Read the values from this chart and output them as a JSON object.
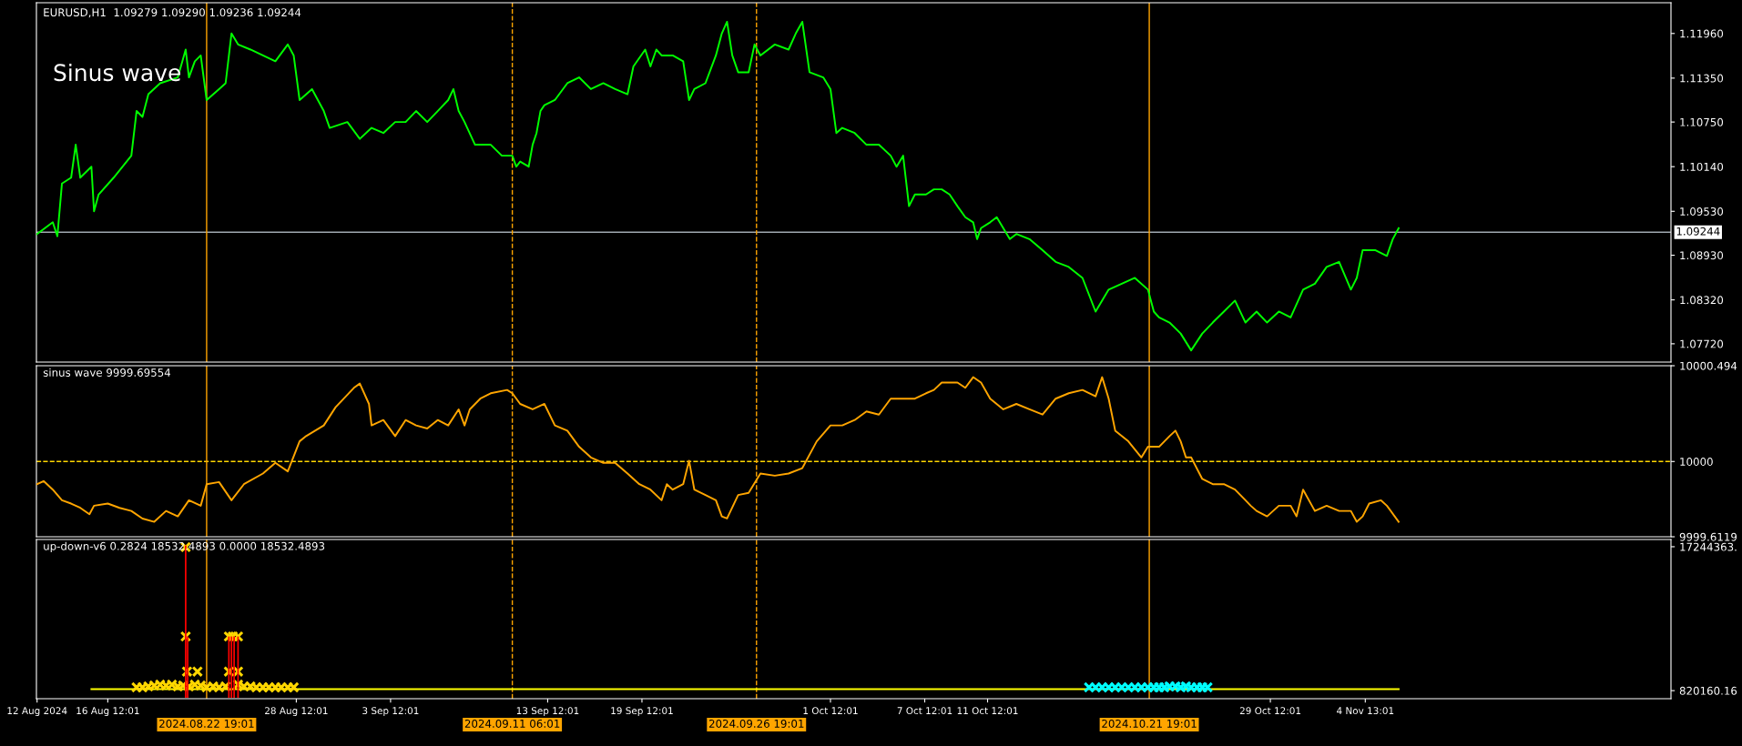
{
  "chart_data": [
    {
      "type": "line",
      "title": "EURUSD,H1  1.09279 1.09290 1.09236 1.09244",
      "annotations": [
        "Sinus wave"
      ],
      "tick_labels": "y",
      "xlim": [
        "2024-08-11T23:00",
        "2024-11-24T00:00"
      ],
      "ylim": [
        1.0747,
        1.1238
      ],
      "yticks": [
        {
          "value": 1.1196,
          "label": "1.11960"
        },
        {
          "value": 1.1135,
          "label": "1.11350"
        },
        {
          "value": 1.1075,
          "label": "1.10750"
        },
        {
          "value": 1.1014,
          "label": "1.10140"
        },
        {
          "value": 1.0953,
          "label": "1.09530"
        },
        {
          "value": 1.0893,
          "label": "1.08930"
        },
        {
          "value": 1.0832,
          "label": "1.08320"
        },
        {
          "value": 1.0772,
          "label": "1.07720"
        }
      ],
      "ref_lines": [
        {
          "axis": "y",
          "value": 1.09244,
          "label": "1.09244",
          "color": "#a0a8b0",
          "line_style": "solid"
        },
        {
          "axis": "x",
          "value": "2024-08-22T19:01",
          "label": null,
          "color": "#ffa500",
          "line_style": "solid"
        },
        {
          "axis": "x",
          "value": "2024-09-11T06:01",
          "label": null,
          "color": "#ffa500",
          "line_style": "dashed"
        },
        {
          "axis": "x",
          "value": "2024-09-26T19:01",
          "label": null,
          "color": "#ffa500",
          "line_style": "dashed"
        },
        {
          "axis": "x",
          "value": "2024-10-21T19:01",
          "label": null,
          "color": "#ffa500",
          "line_style": "solid"
        }
      ],
      "series": [
        {
          "color": "#00ff00",
          "x": [
            "2024-08-12T00:00",
            "2024-08-13T00:00",
            "2024-08-13T07:00",
            "2024-08-13T14:00",
            "2024-08-14T04:00",
            "2024-08-14T11:00",
            "2024-08-14T18:00",
            "2024-08-15T11:00",
            "2024-08-15T15:00",
            "2024-08-15T22:00",
            "2024-08-16T21:00",
            "2024-08-18T00:00",
            "2024-08-18T08:00",
            "2024-08-18T17:00",
            "2024-08-19T02:00",
            "2024-08-19T20:00",
            "2024-08-20T23:00",
            "2024-08-21T11:00",
            "2024-08-21T16:00",
            "2024-08-22T01:00",
            "2024-08-22T10:00",
            "2024-08-22T19:00",
            "2024-08-23T14:00",
            "2024-08-24T00:00",
            "2024-08-24T09:00",
            "2024-08-24T19:00",
            "2024-08-25T14:00",
            "2024-08-26T09:00",
            "2024-08-27T04:00",
            "2024-08-27T23:00",
            "2024-08-28T08:00",
            "2024-08-28T17:00",
            "2024-08-29T12:00",
            "2024-08-30T06:00",
            "2024-08-30T15:00",
            "2024-08-31T18:00",
            "2024-09-01T13:00",
            "2024-09-02T07:00",
            "2024-09-03T01:00",
            "2024-09-03T19:00",
            "2024-09-04T11:00",
            "2024-09-05T03:00",
            "2024-09-05T20:00",
            "2024-09-06T12:00",
            "2024-09-07T04:00",
            "2024-09-07T12:00",
            "2024-09-07T20:00",
            "2024-09-08T05:00",
            "2024-09-08T21:00",
            "2024-09-09T21:00",
            "2024-09-10T14:00",
            "2024-09-11T06:00",
            "2024-09-11T12:00",
            "2024-09-11T18:00",
            "2024-09-12T07:00",
            "2024-09-12T13:00",
            "2024-09-12T19:00",
            "2024-09-13T01:00",
            "2024-09-13T07:00",
            "2024-09-13T23:00",
            "2024-09-14T18:00",
            "2024-09-15T12:00",
            "2024-09-16T06:00",
            "2024-09-17T01:00",
            "2024-09-17T19:00",
            "2024-09-18T14:00",
            "2024-09-18T23:00",
            "2024-09-19T17:00",
            "2024-09-20T01:00",
            "2024-09-20T10:00",
            "2024-09-20T18:00",
            "2024-09-21T11:00",
            "2024-09-22T03:00",
            "2024-09-22T12:00",
            "2024-09-22T20:00",
            "2024-09-23T13:00",
            "2024-09-24T05:00",
            "2024-09-24T14:00",
            "2024-09-24T22:00",
            "2024-09-25T06:00",
            "2024-09-25T15:00",
            "2024-09-26T07:00",
            "2024-09-26T16:00",
            "2024-09-27T01:00",
            "2024-09-27T23:00",
            "2024-09-28T20:00",
            "2024-09-29T07:00",
            "2024-09-29T17:00",
            "2024-09-30T04:00",
            "2024-10-01T01:00",
            "2024-10-01T12:00",
            "2024-10-01T21:00",
            "2024-10-02T06:00",
            "2024-10-03T01:00",
            "2024-10-03T19:00",
            "2024-10-04T14:00",
            "2024-10-05T08:00",
            "2024-10-05T17:00",
            "2024-10-06T03:00",
            "2024-10-06T12:00",
            "2024-10-06T21:00",
            "2024-10-07T14:00",
            "2024-10-08T02:00",
            "2024-10-08T14:00",
            "2024-10-09T02:00",
            "2024-10-09T14:00",
            "2024-10-10T02:00",
            "2024-10-10T14:00",
            "2024-10-10T20:00",
            "2024-10-11T02:00",
            "2024-10-11T16:00",
            "2024-10-12T02:00",
            "2024-10-12T12:00",
            "2024-10-12T22:00",
            "2024-10-13T08:00",
            "2024-10-14T04:00",
            "2024-10-15T00:00",
            "2024-10-15T20:00",
            "2024-10-16T16:00",
            "2024-10-17T13:00",
            "2024-10-18T09:00",
            "2024-10-19T05:00",
            "2024-10-20T01:00",
            "2024-10-20T21:00",
            "2024-10-21T17:00",
            "2024-10-22T02:00",
            "2024-10-22T10:00",
            "2024-10-23T02:00",
            "2024-10-23T19:00",
            "2024-10-24T11:00",
            "2024-10-25T04:00",
            "2024-10-25T20:00",
            "2024-10-26T13:00",
            "2024-10-27T06:00",
            "2024-10-27T22:00",
            "2024-10-28T15:00",
            "2024-10-29T07:00",
            "2024-10-30T01:00",
            "2024-10-30T19:00",
            "2024-10-31T14:00",
            "2024-11-01T08:00",
            "2024-11-02T02:00",
            "2024-11-02T21:00",
            "2024-11-03T15:00",
            "2024-11-04T00:00",
            "2024-11-04T09:00",
            "2024-11-05T04:00",
            "2024-11-05T22:00",
            "2024-11-06T07:00",
            "2024-11-06T16:00"
          ],
          "values": [
            1.0922,
            1.0938,
            1.0919,
            1.0991,
            1.0999,
            1.1044,
            1.0999,
            1.1014,
            1.0953,
            1.0976,
            1.0999,
            1.1029,
            1.109,
            1.1082,
            1.1113,
            1.1128,
            1.1136,
            1.1174,
            1.1136,
            1.1158,
            1.1166,
            1.1105,
            1.112,
            1.1128,
            1.1196,
            1.1181,
            1.1174,
            1.1166,
            1.1158,
            1.1181,
            1.1166,
            1.1105,
            1.112,
            1.109,
            1.1067,
            1.1075,
            1.1052,
            1.1067,
            1.106,
            1.1075,
            1.1075,
            1.109,
            1.1075,
            1.109,
            1.1105,
            1.112,
            1.109,
            1.1075,
            1.1044,
            1.1044,
            1.1029,
            1.1029,
            1.1014,
            1.1021,
            1.1014,
            1.1044,
            1.106,
            1.109,
            1.1098,
            1.1105,
            1.1128,
            1.1136,
            1.112,
            1.1128,
            1.112,
            1.1113,
            1.1151,
            1.1174,
            1.1151,
            1.1174,
            1.1166,
            1.1166,
            1.1158,
            1.1105,
            1.112,
            1.1128,
            1.1166,
            1.1196,
            1.1212,
            1.1166,
            1.1143,
            1.1143,
            1.1181,
            1.1166,
            1.1181,
            1.1174,
            1.1196,
            1.1212,
            1.1143,
            1.1136,
            1.112,
            1.106,
            1.1067,
            1.106,
            1.1044,
            1.1044,
            1.1029,
            1.1014,
            1.1029,
            1.096,
            1.0976,
            1.0976,
            1.0983,
            1.0983,
            1.0976,
            1.096,
            1.0945,
            1.0938,
            1.0915,
            1.093,
            1.0938,
            1.0945,
            1.093,
            1.0915,
            1.0922,
            1.0915,
            1.09,
            1.0884,
            1.0877,
            1.0862,
            1.0816,
            1.0846,
            1.0854,
            1.0862,
            1.0846,
            1.0816,
            1.0808,
            1.0801,
            1.0786,
            1.0763,
            1.0786,
            1.0801,
            1.0816,
            1.0831,
            1.0801,
            1.0816,
            1.0801,
            1.0816,
            1.0808,
            1.0846,
            1.0854,
            1.0877,
            1.0884,
            1.0846,
            1.0862,
            1.09,
            1.09,
            1.0892,
            1.0915,
            1.093
          ]
        }
      ]
    },
    {
      "type": "line",
      "title": "sinus wave 9999.69554",
      "tick_labels": "y",
      "xlim": [
        "2024-08-11T23:00",
        "2024-11-24T00:00"
      ],
      "ylim": [
        9999.6119,
        10000.494
      ],
      "yticks": [
        9999.6119,
        10000,
        10000.494
      ],
      "ref_lines": [
        {
          "axis": "y",
          "value": 10000,
          "label": null,
          "color": "#ffd700",
          "line_style": "dashed"
        },
        {
          "axis": "x",
          "value": "2024-08-22T19:01",
          "label": null,
          "color": "#ffa500",
          "line_style": "solid"
        },
        {
          "axis": "x",
          "value": "2024-09-11T06:01",
          "label": null,
          "color": "#ffa500",
          "line_style": "dashed"
        },
        {
          "axis": "x",
          "value": "2024-09-26T19:01",
          "label": null,
          "color": "#ffa500",
          "line_style": "dashed"
        },
        {
          "axis": "x",
          "value": "2024-10-21T19:01",
          "label": null,
          "color": "#ffa500",
          "line_style": "solid"
        }
      ],
      "series": [
        {
          "color": "#ffa500",
          "x": [
            "2024-08-12T00:00",
            "2024-08-12T10:00",
            "2024-08-13T00:00",
            "2024-08-13T14:00",
            "2024-08-14T04:00",
            "2024-08-14T18:00",
            "2024-08-15T08:00",
            "2024-08-15T15:00",
            "2024-08-16T12:00",
            "2024-08-17T06:00",
            "2024-08-18T00:00",
            "2024-08-18T17:00",
            "2024-08-19T11:00",
            "2024-08-20T05:00",
            "2024-08-20T23:00",
            "2024-08-21T16:00",
            "2024-08-22T10:00",
            "2024-08-22T19:00",
            "2024-08-23T14:00",
            "2024-08-24T09:00",
            "2024-08-25T04:00",
            "2024-08-26T09:00",
            "2024-08-27T04:00",
            "2024-08-27T23:00",
            "2024-08-28T17:00",
            "2024-08-29T03:00",
            "2024-08-30T06:00",
            "2024-08-31T00:00",
            "2024-09-01T04:00",
            "2024-09-01T13:00",
            "2024-09-02T03:00",
            "2024-09-02T07:00",
            "2024-09-03T01:00",
            "2024-09-03T19:00",
            "2024-09-04T11:00",
            "2024-09-05T03:00",
            "2024-09-05T20:00",
            "2024-09-06T12:00",
            "2024-09-07T04:00",
            "2024-09-07T20:00",
            "2024-09-08T05:00",
            "2024-09-08T13:00",
            "2024-09-09T05:00",
            "2024-09-09T21:00",
            "2024-09-10T22:00",
            "2024-09-11T06:00",
            "2024-09-11T18:00",
            "2024-09-12T13:00",
            "2024-09-13T07:00",
            "2024-09-13T23:00",
            "2024-09-14T18:00",
            "2024-09-15T12:00",
            "2024-09-16T06:00",
            "2024-09-17T01:00",
            "2024-09-17T19:00",
            "2024-09-18T14:00",
            "2024-09-19T08:00",
            "2024-09-20T01:00",
            "2024-09-20T18:00",
            "2024-09-21T02:00",
            "2024-09-21T11:00",
            "2024-09-22T03:00",
            "2024-09-22T12:00",
            "2024-09-22T20:00",
            "2024-09-23T13:00",
            "2024-09-24T05:00",
            "2024-09-24T14:00",
            "2024-09-24T22:00",
            "2024-09-25T15:00",
            "2024-09-26T07:00",
            "2024-09-27T01:00",
            "2024-09-27T23:00",
            "2024-09-28T20:00",
            "2024-09-29T17:00",
            "2024-09-30T15:00",
            "2024-10-01T12:00",
            "2024-10-02T06:00",
            "2024-10-03T01:00",
            "2024-10-03T19:00",
            "2024-10-04T14:00",
            "2024-10-05T08:00",
            "2024-10-06T03:00",
            "2024-10-06T21:00",
            "2024-10-07T14:00",
            "2024-10-08T02:00",
            "2024-10-08T14:00",
            "2024-10-09T02:00",
            "2024-10-09T14:00",
            "2024-10-10T02:00",
            "2024-10-10T14:00",
            "2024-10-11T02:00",
            "2024-10-11T16:00",
            "2024-10-12T12:00",
            "2024-10-13T08:00",
            "2024-10-14T04:00",
            "2024-10-15T00:00",
            "2024-10-15T20:00",
            "2024-10-16T16:00",
            "2024-10-17T13:00",
            "2024-10-18T09:00",
            "2024-10-18T19:00",
            "2024-10-19T05:00",
            "2024-10-19T15:00",
            "2024-10-20T11:00",
            "2024-10-21T07:00",
            "2024-10-21T17:00",
            "2024-10-22T10:00",
            "2024-10-23T02:00",
            "2024-10-23T11:00",
            "2024-10-23T19:00",
            "2024-10-24T03:00",
            "2024-10-24T11:00",
            "2024-10-25T04:00",
            "2024-10-25T20:00",
            "2024-10-26T13:00",
            "2024-10-27T06:00",
            "2024-10-27T22:00",
            "2024-10-28T06:00",
            "2024-10-28T15:00",
            "2024-10-29T07:00",
            "2024-10-30T01:00",
            "2024-10-30T19:00",
            "2024-10-31T04:00",
            "2024-10-31T14:00",
            "2024-11-01T08:00",
            "2024-11-02T02:00",
            "2024-11-02T21:00",
            "2024-11-03T15:00",
            "2024-11-04T00:00",
            "2024-11-04T09:00",
            "2024-11-04T19:00",
            "2024-11-05T13:00",
            "2024-11-05T22:00",
            "2024-11-06T16:00"
          ],
          "values": [
            9999.883,
            9999.899,
            9999.855,
            9999.8,
            9999.783,
            9999.761,
            9999.728,
            9999.772,
            9999.783,
            9999.761,
            9999.745,
            9999.706,
            9999.689,
            9999.745,
            9999.717,
            9999.8,
            9999.772,
            9999.883,
            9999.894,
            9999.8,
            9999.883,
            9999.938,
            9999.993,
            9999.949,
            10000.104,
            10000.131,
            10000.186,
            10000.28,
            10000.38,
            10000.402,
            10000.297,
            10000.186,
            10000.214,
            10000.131,
            10000.214,
            10000.186,
            10000.17,
            10000.214,
            10000.186,
            10000.269,
            10000.186,
            10000.269,
            10000.324,
            10000.352,
            10000.369,
            10000.352,
            10000.297,
            10000.269,
            10000.297,
            10000.186,
            10000.159,
            10000.076,
            10000.021,
            9999.993,
            9999.993,
            9999.938,
            9999.883,
            9999.855,
            9999.8,
            9999.883,
            9999.855,
            9999.883,
            10000.004,
            9999.855,
            9999.827,
            9999.8,
            9999.717,
            9999.706,
            9999.827,
            9999.838,
            9999.938,
            9999.927,
            9999.938,
            9999.966,
            10000.104,
            10000.186,
            10000.186,
            10000.214,
            10000.258,
            10000.242,
            10000.324,
            10000.324,
            10000.324,
            10000.352,
            10000.369,
            10000.407,
            10000.407,
            10000.407,
            10000.38,
            10000.435,
            10000.407,
            10000.324,
            10000.269,
            10000.297,
            10000.269,
            10000.242,
            10000.324,
            10000.352,
            10000.369,
            10000.336,
            10000.435,
            10000.324,
            10000.159,
            10000.104,
            10000.021,
            10000.076,
            10000.076,
            10000.131,
            10000.159,
            10000.104,
            10000.021,
            10000.021,
            9999.91,
            9999.883,
            9999.883,
            9999.855,
            9999.8,
            9999.772,
            9999.745,
            9999.717,
            9999.772,
            9999.772,
            9999.717,
            9999.855,
            9999.745,
            9999.772,
            9999.745,
            9999.745,
            9999.689,
            9999.717,
            9999.783,
            9999.8,
            9999.772,
            9999.689
          ]
        }
      ]
    },
    {
      "type": "bar",
      "title": "up-down-v6 0.2824 18532.4893 0.0000 18532.4893",
      "xlim": [
        "2024-08-11T23:00",
        "2024-11-24T00:00"
      ],
      "ylim": [
        -100000,
        18070000
      ],
      "yticks": [
        {
          "value": 820160.16,
          "label": "820160.16"
        },
        {
          "value": 17244363,
          "label": "17244363."
        }
      ],
      "xticks": [
        {
          "value": "2024-08-12T00:00",
          "label": "12 Aug 2024"
        },
        {
          "value": "2024-08-16T12:01",
          "label": "16 Aug 12:01"
        },
        {
          "value": "2024-08-28T12:01",
          "label": "28 Aug 12:01"
        },
        {
          "value": "2024-09-03T12:01",
          "label": "3 Sep 12:01"
        },
        {
          "value": "2024-09-13T12:01",
          "label": "13 Sep 12:01"
        },
        {
          "value": "2024-09-19T12:01",
          "label": "19 Sep 12:01"
        },
        {
          "value": "2024-10-01T12:01",
          "label": "1 Oct 12:01"
        },
        {
          "value": "2024-10-07T12:01",
          "label": "7 Oct 12:01"
        },
        {
          "value": "2024-10-11T12:01",
          "label": "11 Oct 12:01"
        },
        {
          "value": "2024-10-29T12:01",
          "label": "29 Oct 12:01"
        },
        {
          "value": "2024-11-04T13:01",
          "label": "4 Nov 13:01"
        }
      ],
      "ref_lines": [
        {
          "axis": "x",
          "value": "2024-08-22T19:01",
          "label": "2024.08.22 19:01",
          "color": "#ffa500",
          "line_style": "solid"
        },
        {
          "axis": "x",
          "value": "2024-09-11T06:01",
          "label": "2024.09.11 06:01",
          "color": "#ffa500",
          "line_style": "dashed"
        },
        {
          "axis": "x",
          "value": "2024-09-26T19:01",
          "label": "2024.09.26 19:01",
          "color": "#ffa500",
          "line_style": "dashed"
        },
        {
          "axis": "x",
          "value": "2024-10-21T19:01",
          "label": "2024.10.21 19:01",
          "color": "#ffa500",
          "line_style": "solid"
        }
      ],
      "series": [
        {
          "type": "line",
          "color": "#ffff00",
          "x": [
            "2024-08-15T11:00",
            "2024-11-06T16:00"
          ],
          "values": [
            1000000,
            1000000
          ]
        },
        {
          "type": "bar",
          "color": "#ff0000",
          "x": [
            "2024-08-21T11:00",
            "2024-08-21T14:00",
            "2024-08-24T05:00",
            "2024-08-24T09:00",
            "2024-08-24T13:00",
            "2024-08-24T19:00"
          ],
          "values": [
            17400000,
            7000000,
            7000000,
            7000000,
            7000000,
            7000000
          ]
        },
        {
          "type": "scatter",
          "marker": "cross",
          "color": "#ffd700",
          "x": [
            "2024-08-18T08:00",
            "2024-08-18T17:00",
            "2024-08-19T02:00",
            "2024-08-19T11:00",
            "2024-08-19T20:00",
            "2024-08-20T05:00",
            "2024-08-20T14:00",
            "2024-08-20T23:00",
            "2024-08-21T07:00",
            "2024-08-21T16:00",
            "2024-08-22T01:00",
            "2024-08-22T10:00",
            "2024-08-22T19:00",
            "2024-08-23T05:00",
            "2024-08-23T14:00",
            "2024-08-24T00:00",
            "2024-08-24T09:00",
            "2024-08-24T19:00",
            "2024-08-25T04:00",
            "2024-08-25T14:00",
            "2024-08-25T23:00",
            "2024-08-26T09:00",
            "2024-08-26T18:00",
            "2024-08-27T04:00",
            "2024-08-27T13:00",
            "2024-08-27T23:00",
            "2024-08-28T08:00"
          ],
          "values": [
            1200000,
            1200000,
            1300000,
            1400000,
            1500000,
            1400000,
            1500000,
            1300000,
            1400000,
            1300000,
            1500000,
            1400000,
            1200000,
            1300000,
            1200000,
            1300000,
            null,
            1500000,
            1300000,
            1300000,
            1200000,
            1200000,
            1200000,
            1200000,
            1200000,
            1200000,
            1200000
          ]
        },
        {
          "type": "scatter",
          "marker": "cross",
          "color": "#00ffff",
          "x": [
            "2024-10-17T23:00",
            "2024-10-18T09:00",
            "2024-10-18T19:00",
            "2024-10-19T05:00",
            "2024-10-19T15:00",
            "2024-10-20T01:00",
            "2024-10-20T11:00",
            "2024-10-20T21:00",
            "2024-10-21T07:00",
            "2024-10-21T17:00",
            "2024-10-22T02:00",
            "2024-10-22T10:00",
            "2024-10-22T18:00",
            "2024-10-23T02:00",
            "2024-10-23T11:00",
            "2024-10-23T19:00",
            "2024-10-24T03:00",
            "2024-10-24T11:00",
            "2024-10-24T20:00",
            "2024-10-25T04:00",
            "2024-10-25T12:00"
          ],
          "values": [
            1200000,
            1200000,
            1200000,
            1200000,
            1200000,
            1200000,
            1200000,
            1200000,
            1200000,
            1200000,
            1200000,
            1200000,
            1200000,
            1300000,
            1300000,
            1200000,
            1300000,
            1200000,
            1200000,
            1200000,
            1200000
          ]
        },
        {
          "type": "scatter",
          "marker": "cross",
          "color": "#ffd700",
          "x": [
            "2024-08-21T11:00",
            "2024-08-21T11:00",
            "2024-08-21T13:00",
            "2024-08-22T05:00",
            "2024-08-24T05:00",
            "2024-08-24T11:00",
            "2024-08-24T19:00",
            "2024-08-24T05:00",
            "2024-08-24T19:00"
          ],
          "values": [
            17200000,
            7000000,
            3000000,
            3000000,
            7000000,
            7000000,
            7000000,
            3000000,
            3000000
          ]
        }
      ]
    }
  ]
}
